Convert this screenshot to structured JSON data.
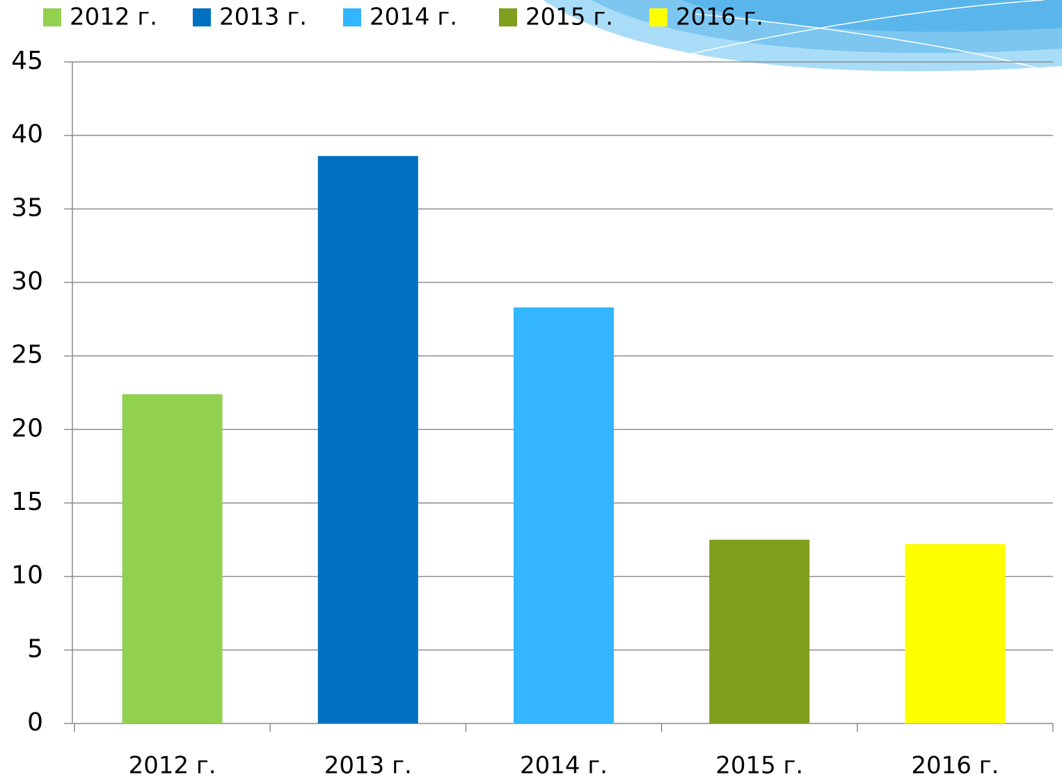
{
  "chart_data": {
    "type": "bar",
    "categories": [
      "2012 г.",
      "2013 г.",
      "2014 г.",
      "2015 г.",
      "2016 г."
    ],
    "values": [
      22.4,
      38.6,
      28.3,
      12.5,
      12.2
    ],
    "colors": [
      "#92d050",
      "#0070c0",
      "#33b5ff",
      "#7f9e1e",
      "#ffff00"
    ],
    "ylim": [
      0,
      45
    ],
    "yticks": [
      0,
      5,
      10,
      15,
      20,
      25,
      30,
      35,
      40,
      45
    ],
    "grid": true,
    "legend": "top"
  }
}
